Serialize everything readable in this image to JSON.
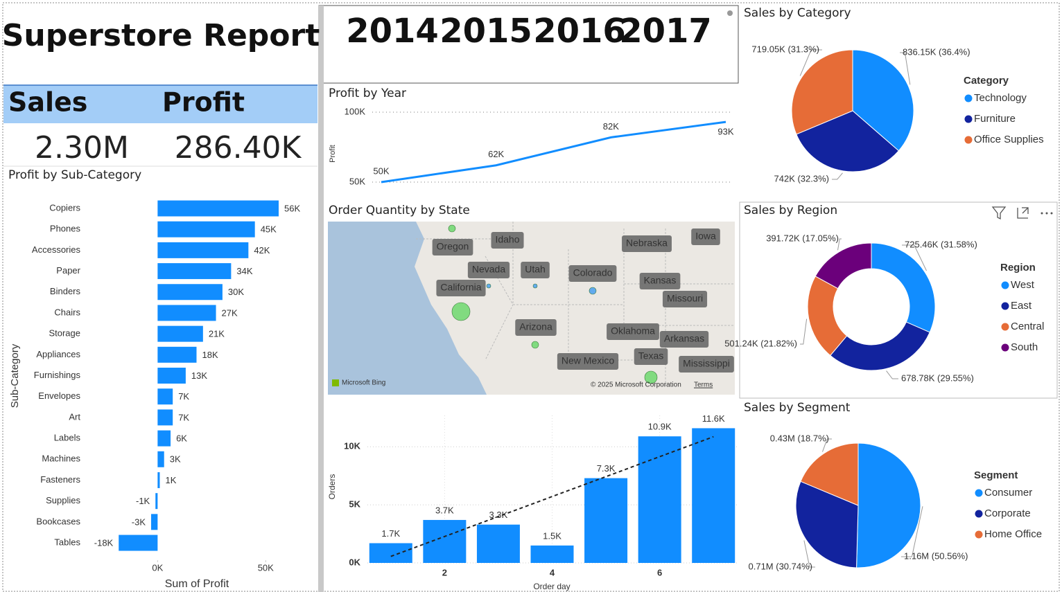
{
  "header": {
    "title": "Superstore Report"
  },
  "slicer": {
    "years": [
      "2014",
      "2015",
      "2016",
      "2017"
    ]
  },
  "kpis": [
    {
      "label": "Sales",
      "value": "2.30M"
    },
    {
      "label": "Profit",
      "value": "286.40K"
    }
  ],
  "chart_data": [
    {
      "type": "bar",
      "orientation": "horizontal",
      "title": "Profit by Sub-Category",
      "x_label": "Sum of Profit",
      "y_label": "Sub-Category",
      "categories": [
        "Copiers",
        "Phones",
        "Accessories",
        "Paper",
        "Binders",
        "Chairs",
        "Storage",
        "Appliances",
        "Furnishings",
        "Envelopes",
        "Art",
        "Labels",
        "Machines",
        "Fasteners",
        "Supplies",
        "Bookcases",
        "Tables"
      ],
      "values": [
        56000,
        45000,
        42000,
        34000,
        30000,
        27000,
        21000,
        18000,
        13000,
        7000,
        7000,
        6000,
        3000,
        1000,
        -1000,
        -3000,
        -18000
      ],
      "value_labels": [
        "56K",
        "45K",
        "42K",
        "34K",
        "30K",
        "27K",
        "21K",
        "18K",
        "13K",
        "7K",
        "7K",
        "6K",
        "3K",
        "1K",
        "-1K",
        "-3K",
        "-18K"
      ],
      "color": "#118dff",
      "xlim": [
        -20000,
        73000
      ],
      "xticks": [
        {
          "value": 0,
          "label": "0K"
        },
        {
          "value": 50000,
          "label": "50K"
        }
      ]
    },
    {
      "type": "line",
      "title": "Profit by Year",
      "y_label": "Profit",
      "values": [
        50000,
        62000,
        82000,
        93000
      ],
      "value_labels": [
        "50K",
        "62K",
        "82K",
        "93K"
      ],
      "color": "#118dff",
      "ylim": [
        50000,
        100000
      ],
      "yticks": [
        {
          "value": 50000,
          "label": "50K"
        },
        {
          "value": 100000,
          "label": "100K"
        }
      ],
      "grid": true
    },
    {
      "type": "map",
      "title": "Order Quantity by State",
      "labels": [
        "Oregon",
        "Idaho",
        "Nebraska",
        "Iowa",
        "Nevada",
        "Utah",
        "Colorado",
        "Kansas",
        "California",
        "Missouri",
        "Arizona",
        "Oklahoma",
        "Arkansas",
        "Texas",
        "New Mexico",
        "Mississippi"
      ],
      "provider": "Microsoft Bing",
      "attribution": "© 2025 Microsoft Corporation",
      "terms": "Terms"
    },
    {
      "type": "bar",
      "orientation": "vertical",
      "x_label": "Order day",
      "y_label": "Orders",
      "x": [
        1,
        2,
        3,
        4,
        5,
        6,
        7
      ],
      "values": [
        1700,
        3700,
        3300,
        1500,
        7300,
        10900,
        11600
      ],
      "value_labels": [
        "1.7K",
        "3.7K",
        "3.3K",
        "1.5K",
        "7.3K",
        "10.9K",
        "11.6K"
      ],
      "color": "#118dff",
      "trendline": true,
      "xlim": [
        0.5,
        7.5
      ],
      "xticks": [
        2,
        4,
        6
      ],
      "ylim": [
        0,
        12700
      ],
      "yticks": [
        {
          "value": 0,
          "label": "0K"
        },
        {
          "value": 5000,
          "label": "5K"
        },
        {
          "value": 10000,
          "label": "10K"
        }
      ],
      "grid": true
    },
    {
      "type": "pie",
      "title": "Sales by Category",
      "legend_title": "Category",
      "legend": "right",
      "categories": [
        "Technology",
        "Furniture",
        "Office Supplies"
      ],
      "values": [
        836150,
        742000,
        719050
      ],
      "value_labels": [
        "836.15K (36.4%)",
        "742K (32.3%)",
        "719.05K (31.3%)"
      ],
      "colors": [
        "#118dff",
        "#12239e",
        "#e66c37"
      ]
    },
    {
      "type": "donut",
      "title": "Sales by Region",
      "legend_title": "Region",
      "legend": "right",
      "categories": [
        "West",
        "East",
        "Central",
        "South"
      ],
      "values": [
        725460,
        678780,
        501240,
        391720
      ],
      "value_labels": [
        "725.46K (31.58%)",
        "678.78K (29.55%)",
        "501.24K (21.82%)",
        "391.72K (17.05%)"
      ],
      "colors": [
        "#118dff",
        "#12239e",
        "#e66c37",
        "#6b007b"
      ]
    },
    {
      "type": "pie",
      "title": "Sales by Segment",
      "legend_title": "Segment",
      "legend": "right",
      "categories": [
        "Consumer",
        "Corporate",
        "Home Office"
      ],
      "values": [
        1160000,
        710000,
        430000
      ],
      "value_labels": [
        "1.16M (50.56%)",
        "0.71M (30.74%)",
        "0.43M (18.7%)"
      ],
      "colors": [
        "#118dff",
        "#12239e",
        "#e66c37"
      ]
    }
  ]
}
